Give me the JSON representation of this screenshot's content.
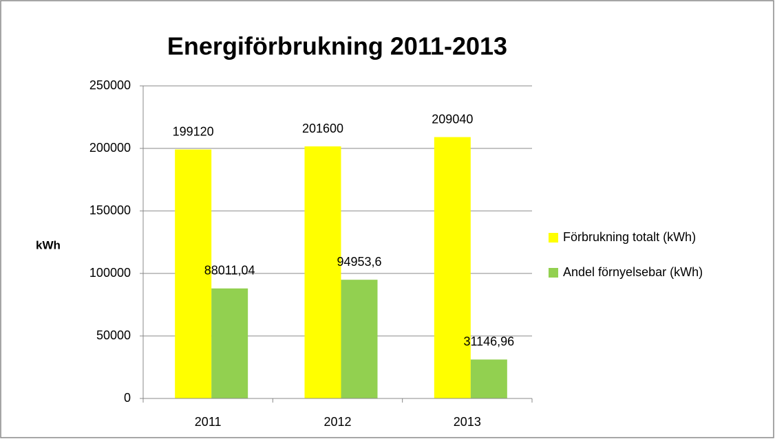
{
  "chart_data": {
    "type": "bar",
    "title": "Energiförbrukning 2011-2013",
    "ylabel": "kWh",
    "categories": [
      "2011",
      "2012",
      "2013"
    ],
    "series": [
      {
        "name": "Förbrukning totalt (kWh)",
        "color": "#ffff00",
        "values": [
          199120,
          201600,
          209040
        ]
      },
      {
        "name": "Andel förnyelsebar (kWh)",
        "color": "#92d050",
        "values": [
          88011.04,
          94953.6,
          31146.96
        ],
        "value_labels": [
          "88011,04",
          "94953,6",
          "31146,96"
        ]
      }
    ],
    "ylim": [
      0,
      250000
    ],
    "yticks": [
      0,
      50000,
      100000,
      150000,
      200000,
      250000
    ],
    "grid": true,
    "legend": "right"
  }
}
